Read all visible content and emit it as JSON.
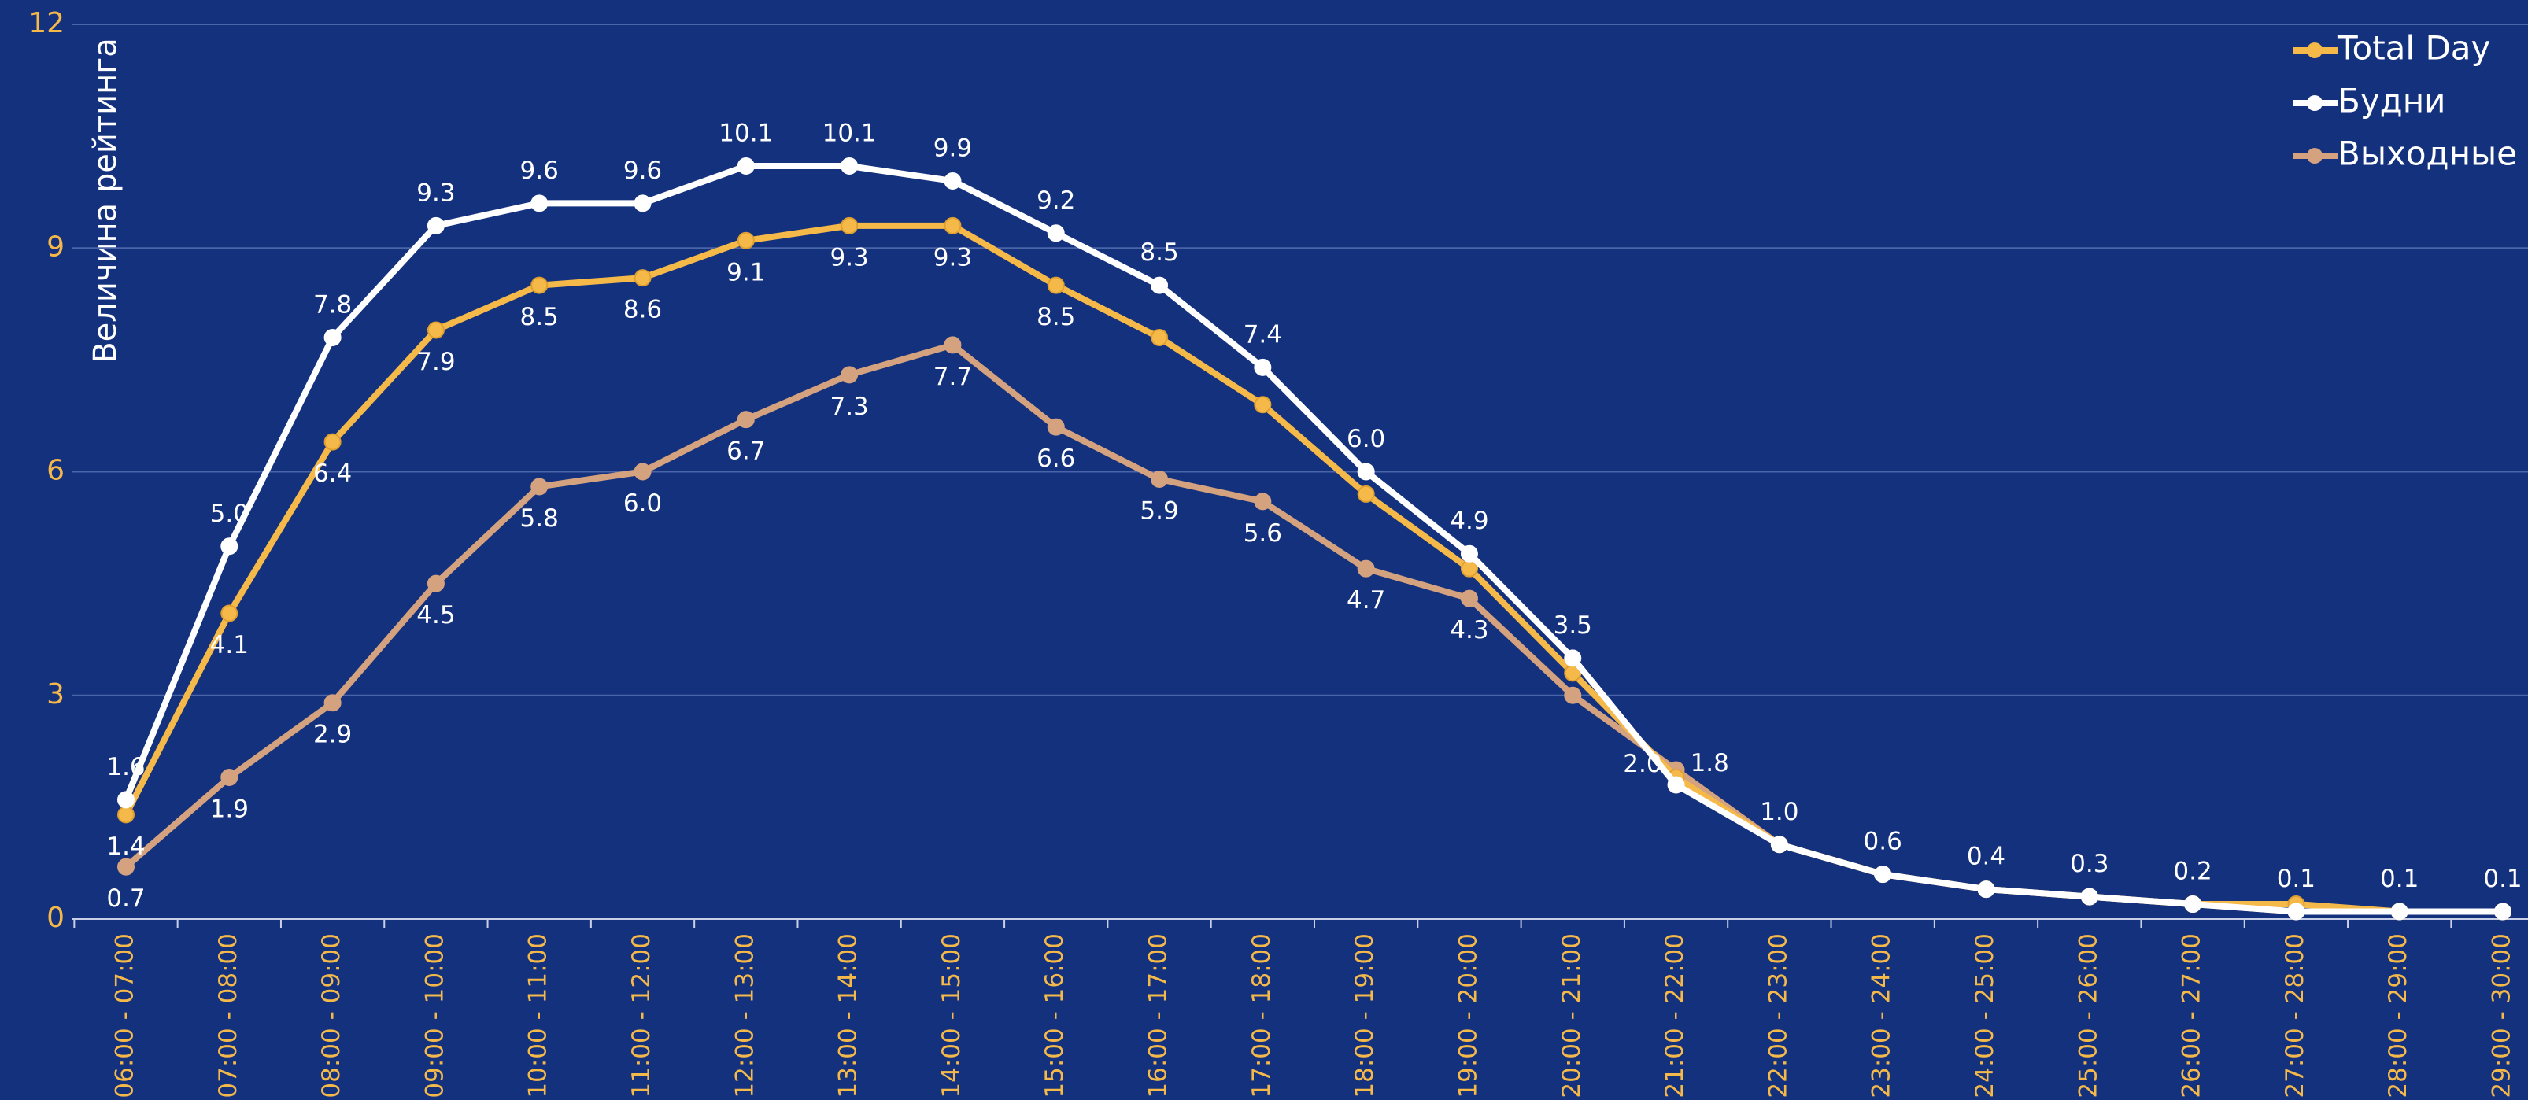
{
  "chart_data": {
    "type": "line",
    "y_label": "Величина рейтинга",
    "categories": [
      "06:00 - 07:00",
      "07:00 - 08:00",
      "08:00 - 09:00",
      "09:00 - 10:00",
      "10:00 - 11:00",
      "11:00 - 12:00",
      "12:00 - 13:00",
      "13:00 - 14:00",
      "14:00 - 15:00",
      "15:00 - 16:00",
      "16:00 - 17:00",
      "17:00 - 18:00",
      "18:00 - 19:00",
      "19:00 - 20:00",
      "20:00 - 21:00",
      "21:00 - 22:00",
      "22:00 - 23:00",
      "23:00 - 24:00",
      "24:00 - 25:00",
      "25:00 - 26:00",
      "26:00 - 27:00",
      "27:00 - 28:00",
      "28:00 - 29:00",
      "29:00 - 30:00"
    ],
    "series": [
      {
        "name": "Total Day",
        "color": "#f5b94a",
        "values": [
          1.4,
          4.1,
          6.4,
          7.9,
          8.5,
          8.6,
          9.1,
          9.3,
          9.3,
          8.5,
          7.8,
          6.9,
          5.7,
          4.7,
          3.3,
          1.9,
          1.0,
          0.6,
          0.4,
          0.3,
          0.2,
          0.2,
          0.1,
          0.1
        ],
        "value_labels": [
          "1.4",
          "4.1",
          "6.4",
          "7.9",
          "8.5",
          "8.6",
          "9.1",
          "9.3",
          "9.3",
          "8.5",
          null,
          null,
          null,
          null,
          null,
          null,
          null,
          null,
          null,
          null,
          null,
          null,
          null,
          null
        ],
        "label_position": "below"
      },
      {
        "name": "Будни",
        "color": "#ffffff",
        "values": [
          1.6,
          5.0,
          7.8,
          9.3,
          9.6,
          9.6,
          10.1,
          10.1,
          9.9,
          9.2,
          8.5,
          7.4,
          6.0,
          4.9,
          3.5,
          1.8,
          1.0,
          0.6,
          0.4,
          0.3,
          0.2,
          0.1,
          0.1,
          0.1
        ],
        "value_labels": [
          "1.6",
          "5.0",
          "7.8",
          "9.3",
          "9.6",
          "9.6",
          "10.1",
          "10.1",
          "9.9",
          "9.2",
          "8.5",
          "7.4",
          "6.0",
          "4.9",
          "3.5",
          "1.8",
          "1.0",
          "0.6",
          "0.4",
          "0.3",
          "0.2",
          "0.1",
          "0.1",
          "0.1"
        ],
        "label_position": "above"
      },
      {
        "name": "Выходные",
        "color": "#d4a27e",
        "values": [
          0.7,
          1.9,
          2.9,
          4.5,
          5.8,
          6.0,
          6.7,
          7.3,
          7.7,
          6.6,
          5.9,
          5.6,
          4.7,
          4.3,
          3.0,
          2.0,
          1.0,
          0.6,
          0.4,
          0.3,
          0.2,
          0.1,
          0.1,
          0.1
        ],
        "value_labels": [
          "0.7",
          "1.9",
          "2.9",
          "4.5",
          "5.8",
          "6.0",
          "6.7",
          "7.3",
          "7.7",
          "6.6",
          "5.9",
          "5.6",
          "4.7",
          "4.3",
          null,
          "2.0",
          null,
          null,
          null,
          null,
          null,
          null,
          null,
          null
        ],
        "label_position": "below"
      }
    ],
    "ylim": [
      0,
      12
    ],
    "yticks": [
      0,
      3,
      6,
      9,
      12
    ],
    "grid": true,
    "legend": "top-right"
  }
}
